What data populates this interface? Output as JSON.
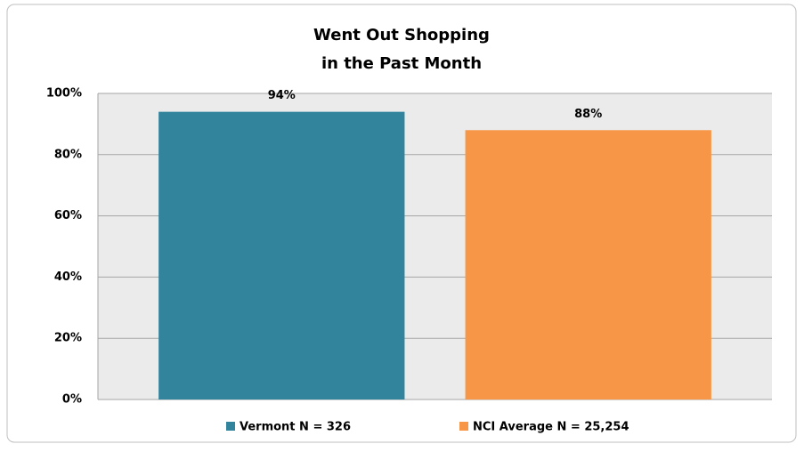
{
  "chart_data": {
    "type": "bar",
    "title": [
      "Went Out Shopping",
      "in the Past Month"
    ],
    "categories": [
      null
    ],
    "series": [
      {
        "name": "Vermont N = 326",
        "color": "#31849b",
        "values": [
          94
        ],
        "value_labels": [
          "94%"
        ]
      },
      {
        "name": "NCI Average N = 25,254",
        "color": "#f79646",
        "values": [
          88
        ],
        "value_labels": [
          "88%"
        ]
      }
    ],
    "ylim": [
      0,
      100
    ],
    "yticks": [
      {
        "value": 0,
        "label": "0%"
      },
      {
        "value": 20,
        "label": "20%"
      },
      {
        "value": 40,
        "label": "40%"
      },
      {
        "value": 60,
        "label": "60%"
      },
      {
        "value": 80,
        "label": "80%"
      },
      {
        "value": 100,
        "label": "100%"
      }
    ],
    "grid": true,
    "legend": "bottom"
  }
}
